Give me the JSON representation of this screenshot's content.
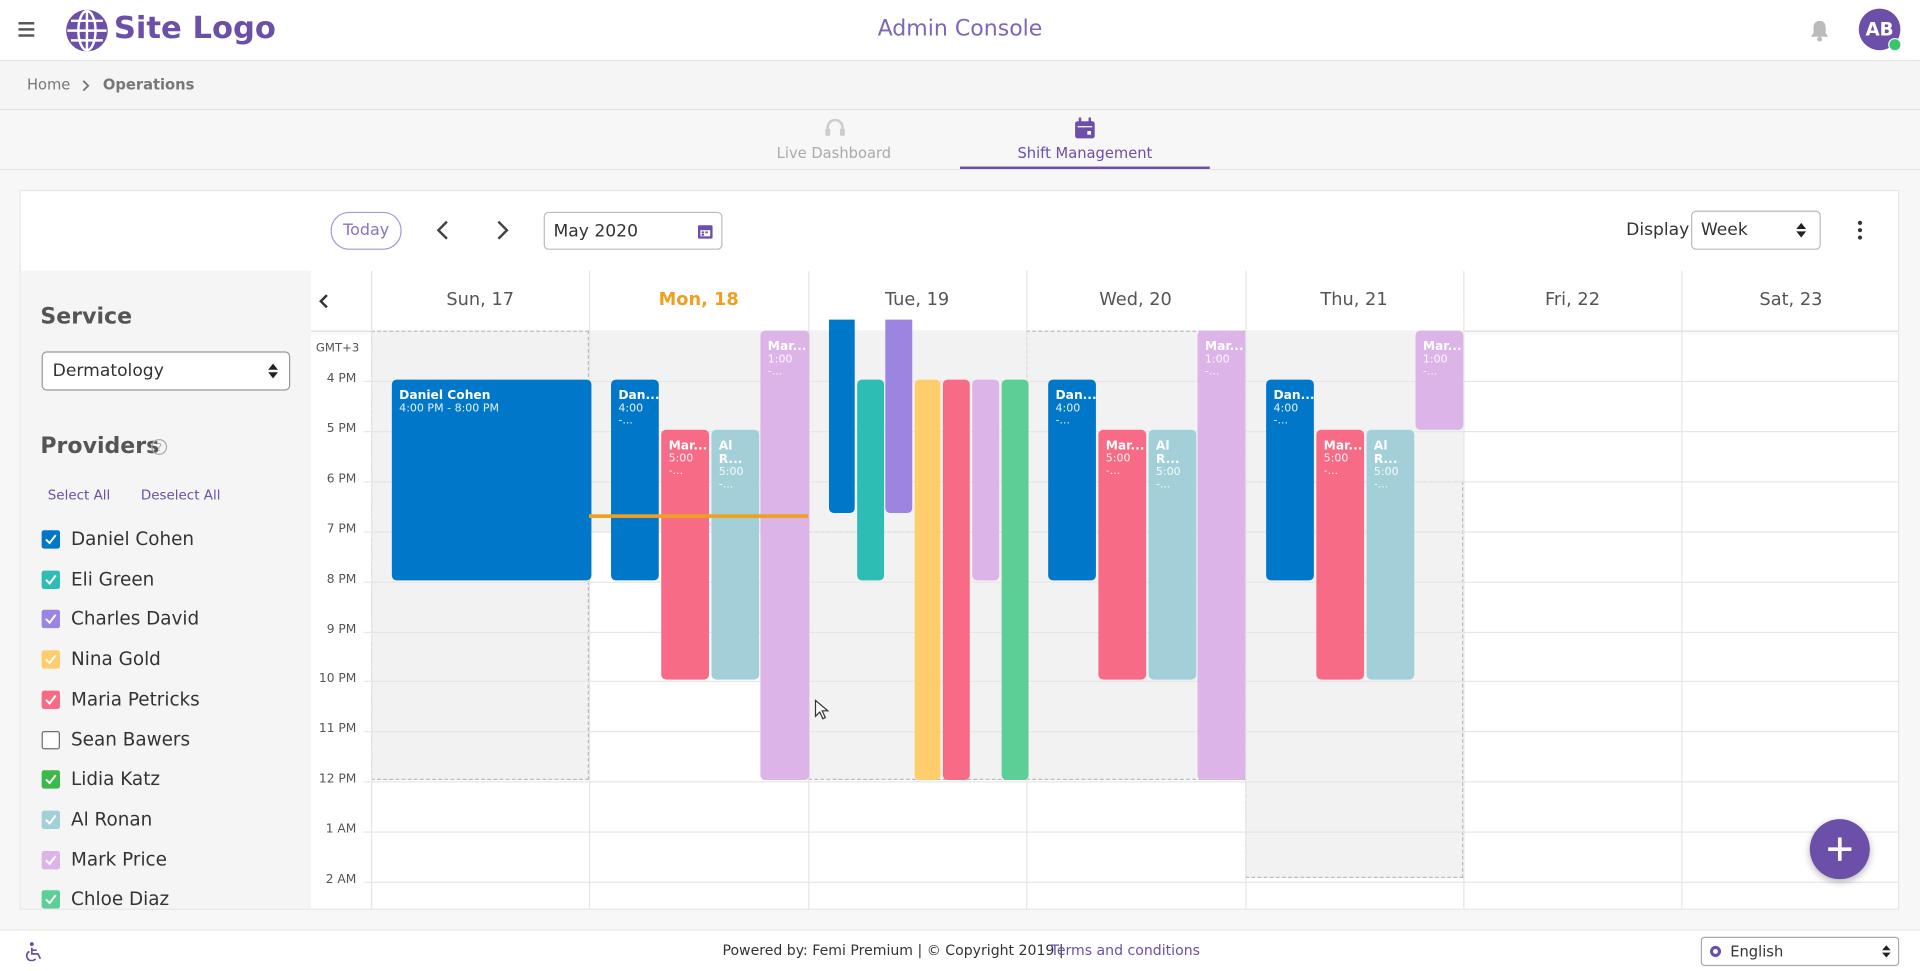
{
  "header": {
    "logo": "Site Logo",
    "title": "Admin Console",
    "avatar": "AB"
  },
  "breadcrumb": [
    "Home",
    "Operations"
  ],
  "tabs": [
    "Live Dashboard",
    "Shift Management"
  ],
  "toolbar": {
    "today": "Today",
    "month": "May 2020",
    "display_label": "Display",
    "display_value": "Week"
  },
  "sidebar": {
    "service_title": "Service",
    "service_value": "Dermatology",
    "providers_title": "Providers",
    "select_all": "Select All",
    "deselect_all": "Deselect All",
    "providers": [
      {
        "name": "Daniel Cohen",
        "color": "#0077c8",
        "checked": true
      },
      {
        "name": "Eli Green",
        "color": "#2ebdb5",
        "checked": true
      },
      {
        "name": "Charles David",
        "color": "#9b85e0",
        "checked": true
      },
      {
        "name": "Nina Gold",
        "color": "#ffcd6b",
        "checked": true
      },
      {
        "name": "Maria Petricks",
        "color": "#f76b86",
        "checked": true
      },
      {
        "name": "Sean Bawers",
        "color": "#6f6f6f",
        "checked": false
      },
      {
        "name": "Lidia Katz",
        "color": "#3cb94b",
        "checked": true
      },
      {
        "name": "Al Ronan",
        "color": "#a3d0d8",
        "checked": true
      },
      {
        "name": "Mark Price",
        "color": "#dcb4e8",
        "checked": true
      },
      {
        "name": "Chloe Diaz",
        "color": "#5ccf97",
        "checked": true
      }
    ]
  },
  "calendar": {
    "timezone": "GMT+3",
    "days": [
      "Sun, 17",
      "Mon, 18",
      "Tue, 19",
      "Wed, 20",
      "Thu, 21",
      "Fri, 22",
      "Sat, 23"
    ],
    "hours": [
      "4 PM",
      "5 PM",
      "6 PM",
      "7 PM",
      "8 PM",
      "9 PM",
      "10 PM",
      "11 PM",
      "12 PM",
      "1 AM",
      "2 AM"
    ],
    "events": [
      {
        "title": "Daniel Cohen",
        "time": "4:00 PM - 8:00 PM"
      },
      {
        "title": "Dan...",
        "time": "4:00 -..."
      },
      {
        "title": "Mar...",
        "time": "5:00 -..."
      },
      {
        "title": "Al R...",
        "time": "5:00 -..."
      },
      {
        "title": "Mar...",
        "time": "1:00 -..."
      },
      {
        "title": "Dan...",
        "time": "4:00 -..."
      },
      {
        "title": "Mar...",
        "time": "5:00 -..."
      },
      {
        "title": "Al R...",
        "time": "5:00 -..."
      },
      {
        "title": "Mar...",
        "time": "1:00 -..."
      },
      {
        "title": "Dan...",
        "time": "4:00 -..."
      },
      {
        "title": "Mar...",
        "time": "5:00 -..."
      },
      {
        "title": "Al R...",
        "time": "5:00 -..."
      },
      {
        "title": "Mar...",
        "time": "1:00 -..."
      }
    ]
  },
  "footer": {
    "text": "Powered by: Femi Premium | © Copyright 2019 |",
    "link": "Terms and conditions",
    "language": "English"
  }
}
